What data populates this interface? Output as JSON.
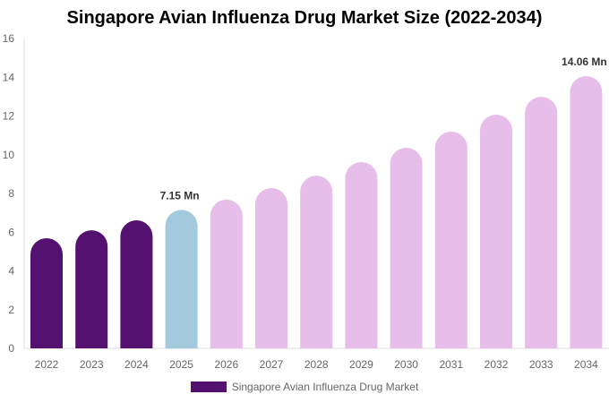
{
  "chart_data": {
    "type": "bar",
    "title": "Singapore Avian Influenza Drug Market Size (2022-2034)",
    "categories": [
      "2022",
      "2023",
      "2024",
      "2025",
      "2026",
      "2027",
      "2028",
      "2029",
      "2030",
      "2031",
      "2032",
      "2033",
      "2034"
    ],
    "series": [
      {
        "name": "Singapore Avian Influenza Drug Market",
        "values": [
          5.69,
          6.1,
          6.61,
          7.15,
          7.68,
          8.28,
          8.92,
          9.62,
          10.36,
          11.19,
          12.07,
          12.99,
          14.06
        ]
      }
    ],
    "bar_colors": [
      "#541170",
      "#541170",
      "#541170",
      "#a3c9dd",
      "#e7bde9",
      "#e7bde9",
      "#e7bde9",
      "#e7bde9",
      "#e7bde9",
      "#e7bde9",
      "#e7bde9",
      "#e7bde9",
      "#e7bde9"
    ],
    "data_labels": [
      {
        "category": "2025",
        "text": "7.15 Mn"
      },
      {
        "category": "2034",
        "text": "14.06 Mn"
      }
    ],
    "yticks": [
      0,
      2,
      4,
      6,
      8,
      10,
      12,
      14,
      16
    ],
    "ylim": [
      0,
      16
    ],
    "xlabel": "",
    "ylabel": "",
    "grid": false,
    "legend_position": "bottom",
    "legend_color": "#541170"
  }
}
